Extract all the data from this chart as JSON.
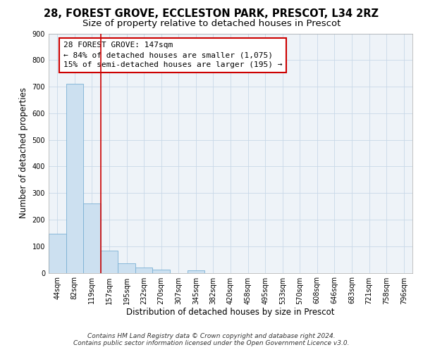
{
  "title_line1": "28, FOREST GROVE, ECCLESTON PARK, PRESCOT, L34 2RZ",
  "title_line2": "Size of property relative to detached houses in Prescot",
  "xlabel": "Distribution of detached houses by size in Prescot",
  "ylabel": "Number of detached properties",
  "bar_color": "#cce0f0",
  "bar_edge_color": "#7ab0d4",
  "grid_color": "#c8d8e8",
  "background_color": "#eef3f8",
  "annotation_box_color": "#cc0000",
  "vline_color": "#cc0000",
  "categories": [
    "44sqm",
    "82sqm",
    "119sqm",
    "157sqm",
    "195sqm",
    "232sqm",
    "270sqm",
    "307sqm",
    "345sqm",
    "382sqm",
    "420sqm",
    "458sqm",
    "495sqm",
    "533sqm",
    "570sqm",
    "608sqm",
    "646sqm",
    "683sqm",
    "721sqm",
    "758sqm",
    "796sqm"
  ],
  "values": [
    147,
    710,
    262,
    83,
    35,
    20,
    11,
    0,
    10,
    0,
    0,
    0,
    0,
    0,
    0,
    0,
    0,
    0,
    0,
    0,
    0
  ],
  "annotation_line1": "28 FOREST GROVE: 147sqm",
  "annotation_line2": "← 84% of detached houses are smaller (1,075)",
  "annotation_line3": "15% of semi-detached houses are larger (195) →",
  "vline_position": 2.5,
  "ylim": [
    0,
    900
  ],
  "yticks": [
    0,
    100,
    200,
    300,
    400,
    500,
    600,
    700,
    800,
    900
  ],
  "footer_line1": "Contains HM Land Registry data © Crown copyright and database right 2024.",
  "footer_line2": "Contains public sector information licensed under the Open Government Licence v3.0.",
  "title_fontsize": 10.5,
  "subtitle_fontsize": 9.5,
  "axis_label_fontsize": 8.5,
  "tick_fontsize": 7,
  "annotation_fontsize": 8,
  "footer_fontsize": 6.5
}
